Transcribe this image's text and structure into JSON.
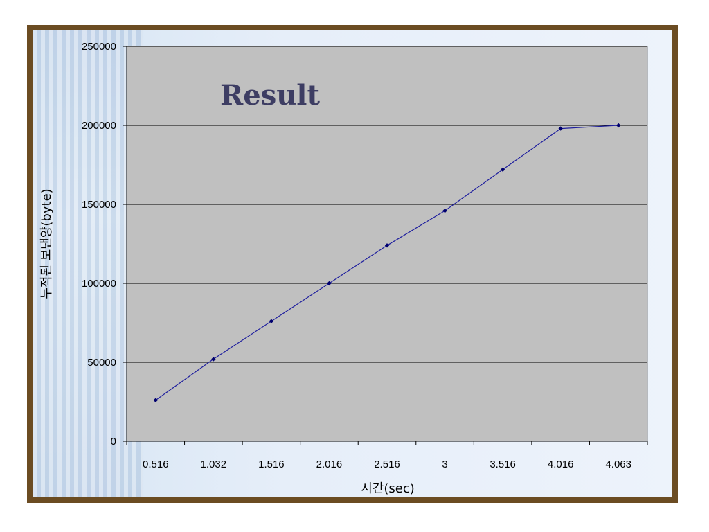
{
  "chart_data": {
    "type": "line",
    "title": "Result",
    "xlabel": "시간(sec)",
    "ylabel": "누적된 보낸양(byte)",
    "categories": [
      "0.516",
      "1.032",
      "1.516",
      "2.016",
      "2.516",
      "3",
      "3.516",
      "4.016",
      "4.063"
    ],
    "series": [
      {
        "values": [
          26000,
          52000,
          76000,
          100000,
          124000,
          146000,
          172000,
          198000,
          200000
        ]
      }
    ],
    "yticks": [
      "0",
      "50000",
      "100000",
      "150000",
      "200000",
      "250000"
    ],
    "ylim": [
      0,
      250000
    ],
    "grid": true,
    "legend": "none",
    "colors": {
      "plot_background": "#c0c0c0",
      "line": "#1f1f9e",
      "marker": "#00006e",
      "gridline": "#000000",
      "title": "#3d3d63",
      "frame": "#6b4c22"
    }
  }
}
